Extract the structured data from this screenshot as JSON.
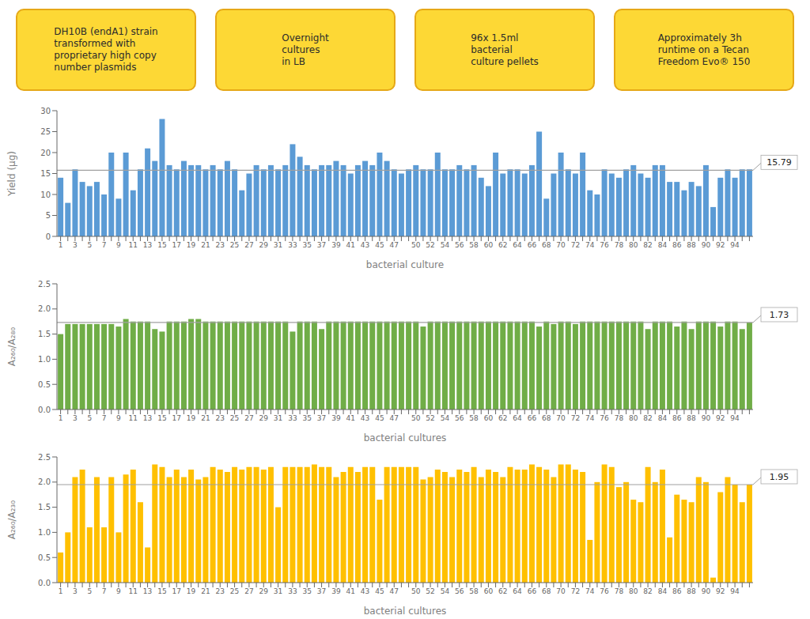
{
  "chart_data": [
    {
      "type": "bar",
      "annotations": [
        "DH10B (endA1) strain\ntransformed with\nproprietary high copy\nnumber plasmids",
        "Overnight\ncultures\nin LB",
        "96x 1.5ml\nbacterial\nculture pellets",
        "Approximately 3h\nruntime on a Tecan\nFreedom Evo® 150"
      ],
      "categories": [
        "1",
        null,
        "3",
        null,
        "5",
        null,
        "7",
        null,
        "9",
        null,
        "11",
        null,
        "13",
        null,
        "15",
        null,
        "17",
        null,
        "19",
        null,
        "21",
        null,
        "23",
        null,
        "25",
        null,
        "27",
        null,
        "29",
        null,
        "31",
        null,
        "33",
        null,
        "35",
        null,
        "37",
        null,
        "39",
        null,
        "41",
        null,
        "43",
        null,
        "45",
        null,
        "47",
        null,
        null,
        "50",
        null,
        "52",
        null,
        "54",
        null,
        "56",
        null,
        "58",
        null,
        "60",
        null,
        "62",
        null,
        "64",
        null,
        "66",
        null,
        "68",
        null,
        "70",
        null,
        "72",
        null,
        "74",
        null,
        "76",
        null,
        "78",
        null,
        "80",
        null,
        "82",
        null,
        "84",
        null,
        "86",
        null,
        "88",
        null,
        "90",
        null,
        "92",
        null,
        "94",
        null,
        null
      ],
      "values": [
        14,
        8,
        16,
        13,
        12,
        13,
        10,
        20,
        9,
        20,
        11,
        16,
        21,
        18,
        28,
        17,
        16,
        18,
        17,
        17,
        16,
        17,
        16,
        18,
        16,
        11,
        15,
        17,
        16,
        17,
        16,
        17,
        22,
        19,
        17,
        16,
        17,
        17,
        18,
        17,
        15,
        17,
        18,
        17,
        20,
        18,
        16,
        15,
        16,
        17,
        16,
        16,
        20,
        16,
        16,
        17,
        16,
        17,
        14,
        12,
        20,
        15,
        16,
        16,
        15,
        17,
        25,
        9,
        15,
        20,
        16,
        15,
        20,
        11,
        10,
        16,
        15,
        14,
        16,
        17,
        15,
        14,
        17,
        17,
        13,
        13,
        11,
        13,
        12,
        17,
        7,
        14,
        16,
        14,
        16,
        16
      ],
      "color": "#5B9BD5",
      "mean": 15.79,
      "xlabel": "bacterial culture",
      "ylabel": "Yield (μg)",
      "ylim": [
        0,
        30
      ],
      "yticks": [
        0,
        5,
        10,
        15,
        20,
        25,
        30
      ],
      "grid": false
    },
    {
      "type": "bar",
      "categories": [
        "1",
        null,
        "3",
        null,
        "5",
        null,
        "7",
        null,
        "9",
        null,
        "11",
        null,
        "13",
        null,
        "15",
        null,
        "17",
        null,
        "19",
        null,
        "21",
        null,
        "23",
        null,
        "25",
        null,
        "27",
        null,
        "29",
        null,
        "31",
        null,
        "33",
        null,
        "35",
        null,
        "37",
        null,
        "39",
        null,
        "41",
        null,
        "43",
        null,
        "45",
        null,
        "47",
        null,
        null,
        "50",
        null,
        "52",
        null,
        "54",
        null,
        "56",
        null,
        "58",
        null,
        "60",
        null,
        "62",
        null,
        "64",
        null,
        "66",
        null,
        "68",
        null,
        "70",
        null,
        "72",
        null,
        "74",
        null,
        "76",
        null,
        "78",
        null,
        "80",
        null,
        "82",
        null,
        "84",
        null,
        "86",
        null,
        "88",
        null,
        "90",
        null,
        "92",
        null,
        "94",
        null,
        null
      ],
      "values": [
        1.5,
        1.7,
        1.7,
        1.7,
        1.7,
        1.7,
        1.7,
        1.7,
        1.65,
        1.8,
        1.75,
        1.75,
        1.75,
        1.6,
        1.55,
        1.75,
        1.75,
        1.75,
        1.8,
        1.8,
        1.75,
        1.75,
        1.75,
        1.75,
        1.75,
        1.75,
        1.75,
        1.75,
        1.75,
        1.75,
        1.75,
        1.75,
        1.55,
        1.75,
        1.75,
        1.75,
        1.6,
        1.75,
        1.75,
        1.75,
        1.75,
        1.75,
        1.75,
        1.75,
        1.75,
        1.75,
        1.75,
        1.75,
        1.75,
        1.75,
        1.65,
        1.75,
        1.75,
        1.75,
        1.75,
        1.75,
        1.75,
        1.75,
        1.75,
        1.75,
        1.75,
        1.75,
        1.75,
        1.75,
        1.75,
        1.75,
        1.65,
        1.75,
        1.7,
        1.75,
        1.75,
        1.7,
        1.75,
        1.75,
        1.75,
        1.75,
        1.75,
        1.75,
        1.75,
        1.75,
        1.75,
        1.6,
        1.75,
        1.75,
        1.75,
        1.65,
        1.75,
        1.6,
        1.75,
        1.75,
        1.75,
        1.65,
        1.75,
        1.75,
        1.6,
        1.73
      ],
      "color": "#70AD47",
      "mean": 1.73,
      "xlabel": "bacterial cultures",
      "ylabel": "A₂₆₀/A₂₈₀",
      "ylim": [
        0,
        2.5
      ],
      "yticks": [
        {
          "value": 0,
          "label": "0.0"
        },
        0.5,
        {
          "value": 1,
          "label": "1.0"
        },
        1.5,
        {
          "value": 2,
          "label": "2.0"
        },
        2.5
      ],
      "grid": false
    },
    {
      "type": "bar",
      "categories": [
        "1",
        null,
        "3",
        null,
        "5",
        null,
        "7",
        null,
        "9",
        null,
        "11",
        null,
        "13",
        null,
        "15",
        null,
        "17",
        null,
        "19",
        null,
        "21",
        null,
        "23",
        null,
        "25",
        null,
        "27",
        null,
        "29",
        null,
        "31",
        null,
        "33",
        null,
        "35",
        null,
        "37",
        null,
        "39",
        null,
        "41",
        null,
        "43",
        null,
        "45",
        null,
        "47",
        null,
        null,
        "50",
        null,
        "52",
        null,
        "54",
        null,
        "56",
        null,
        "58",
        null,
        "60",
        null,
        "62",
        null,
        "64",
        null,
        "66",
        null,
        "68",
        null,
        "70",
        null,
        "72",
        null,
        "74",
        null,
        "76",
        null,
        "78",
        null,
        "80",
        null,
        "82",
        null,
        "84",
        null,
        "86",
        null,
        "88",
        null,
        "90",
        null,
        "92",
        null,
        "94",
        null,
        null
      ],
      "values": [
        0.6,
        1.0,
        2.1,
        2.25,
        1.1,
        2.1,
        1.1,
        2.1,
        1.0,
        2.15,
        2.25,
        1.6,
        0.7,
        2.35,
        2.3,
        2.1,
        2.25,
        2.1,
        2.25,
        2.05,
        2.1,
        2.3,
        2.25,
        2.2,
        2.3,
        2.25,
        2.3,
        2.3,
        2.25,
        2.3,
        1.5,
        2.3,
        2.3,
        2.3,
        2.3,
        2.35,
        2.3,
        2.3,
        2.1,
        2.2,
        2.3,
        2.2,
        2.3,
        2.3,
        1.65,
        2.3,
        2.3,
        2.3,
        2.3,
        2.3,
        2.05,
        2.1,
        2.25,
        2.2,
        2.1,
        2.25,
        2.2,
        2.3,
        2.1,
        2.25,
        2.2,
        2.1,
        2.3,
        2.25,
        2.25,
        2.35,
        2.3,
        2.25,
        2.1,
        2.35,
        2.35,
        2.25,
        2.2,
        0.85,
        2.0,
        2.35,
        2.3,
        1.9,
        2.0,
        1.65,
        1.6,
        2.3,
        2.0,
        2.25,
        0.9,
        1.75,
        1.65,
        1.6,
        2.1,
        2.0,
        0.1,
        1.8,
        2.1,
        1.95,
        1.6,
        1.95
      ],
      "color": "#FFC000",
      "mean": 1.95,
      "xlabel": "bacterial cultures",
      "ylabel": "A₂₆₀/A₂₃₀",
      "ylim": [
        0,
        2.5
      ],
      "yticks": [
        {
          "value": 0,
          "label": "0.0"
        },
        0.5,
        {
          "value": 1,
          "label": "1.0"
        },
        1.5,
        {
          "value": 2,
          "label": "2.0"
        },
        2.5
      ],
      "grid": false
    }
  ]
}
